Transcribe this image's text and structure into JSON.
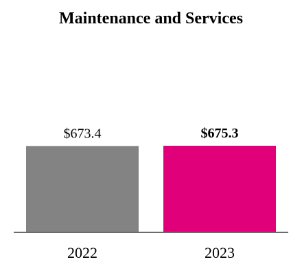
{
  "chart_data": {
    "type": "bar",
    "title": "Maintenance and Services",
    "xlabel": "",
    "ylabel": "",
    "categories": [
      "2022",
      "2023"
    ],
    "values": [
      673.4,
      675.3
    ],
    "value_labels": [
      "$673.4",
      "$675.3"
    ],
    "value_label_bold": [
      false,
      true
    ],
    "colors": [
      "#838383",
      "#e0007a"
    ],
    "axis_color": "#6b6b6b",
    "grid": false
  }
}
